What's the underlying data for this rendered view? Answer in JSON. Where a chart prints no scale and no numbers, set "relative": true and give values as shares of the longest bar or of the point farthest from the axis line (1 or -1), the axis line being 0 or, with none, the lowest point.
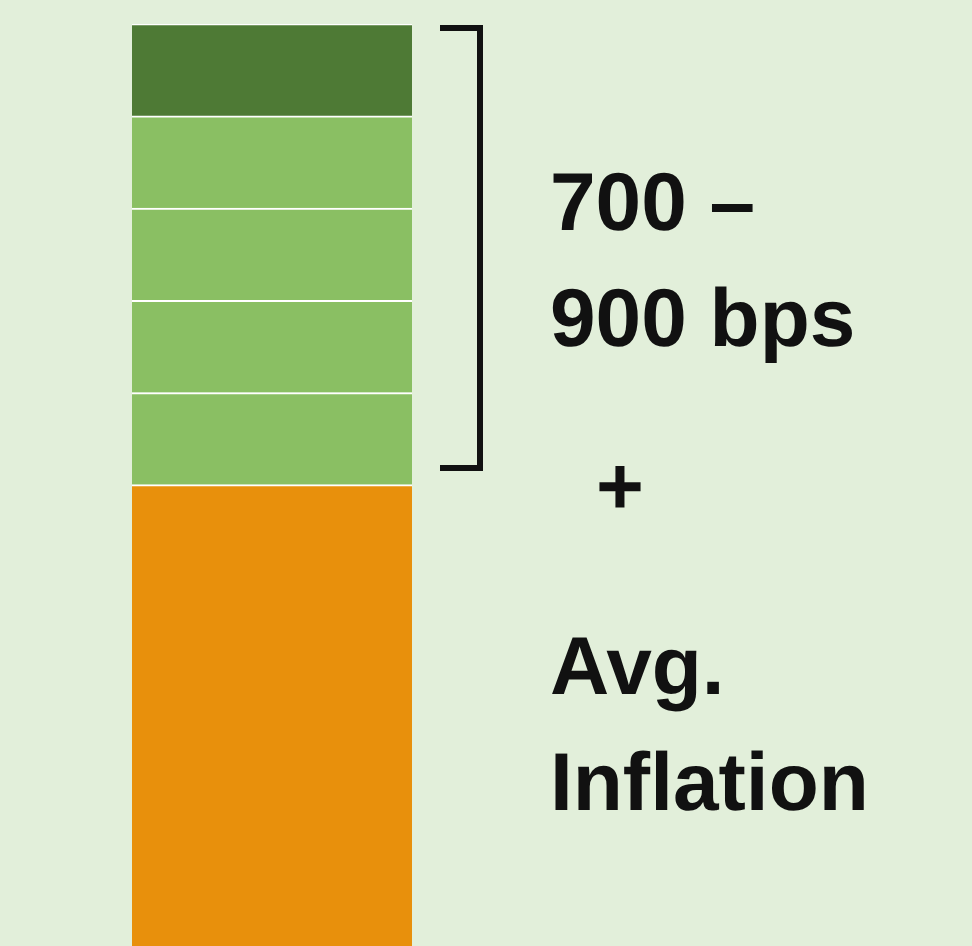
{
  "chart_data": {
    "type": "bar",
    "stacked": true,
    "relative": true,
    "categories": [
      null
    ],
    "series": [
      {
        "color": "#e8900c",
        "values": [
          0.5
        ]
      },
      {
        "color": "#8abf63",
        "values": [
          0.1
        ]
      },
      {
        "color": "#8abf63",
        "values": [
          0.1
        ]
      },
      {
        "color": "#8abf63",
        "values": [
          0.1
        ]
      },
      {
        "color": "#8abf63",
        "values": [
          0.1
        ]
      },
      {
        "color": "#4e7a35",
        "values": [
          0.1
        ]
      }
    ],
    "annotations": [
      "700 –\n900 bps",
      "+",
      "Avg.\nInflation"
    ],
    "legend": false
  }
}
